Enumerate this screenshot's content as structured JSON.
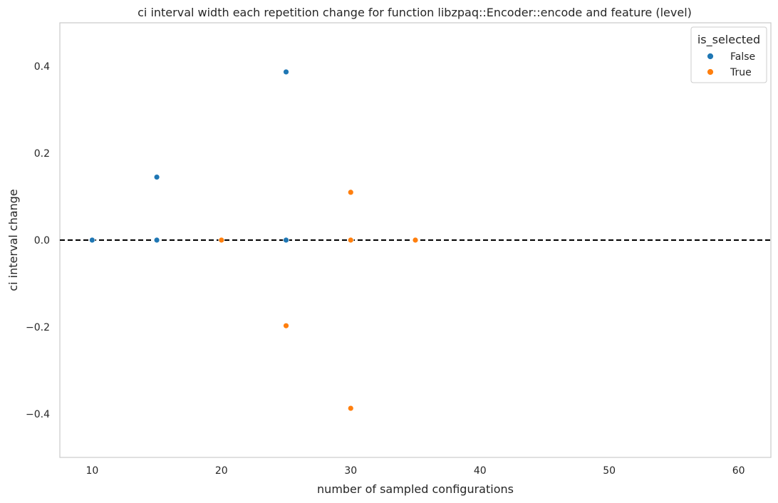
{
  "chart_data": {
    "type": "scatter",
    "title": "ci interval width each repetition change for function libzpaq::Encoder::encode and feature (level)",
    "xlabel": "number of sampled configurations",
    "ylabel": "ci interval change",
    "xlim": [
      7.5,
      62.5
    ],
    "ylim": [
      -0.5,
      0.5
    ],
    "x_ticks": [
      10,
      20,
      30,
      40,
      50,
      60
    ],
    "y_ticks": [
      0.4,
      0.2,
      0.0,
      -0.2,
      -0.4
    ],
    "y_tick_labels": [
      "0.4",
      "0.2",
      "0.0",
      "−0.2",
      "−0.4"
    ],
    "grid": false,
    "reference_line": {
      "y": 0.0,
      "style": "dashed",
      "color": "#000000"
    },
    "legend": {
      "title": "is_selected",
      "placement": "top-right",
      "entries": [
        "False",
        "True"
      ]
    },
    "series": [
      {
        "name": "False",
        "color": "#1f77b4",
        "points": [
          {
            "x": 10,
            "y": 0.0
          },
          {
            "x": 15,
            "y": 0.0
          },
          {
            "x": 15,
            "y": 0.145
          },
          {
            "x": 25,
            "y": 0.0
          },
          {
            "x": 25,
            "y": 0.387
          }
        ]
      },
      {
        "name": "True",
        "color": "#ff7f0e",
        "points": [
          {
            "x": 20,
            "y": 0.0
          },
          {
            "x": 25,
            "y": -0.197
          },
          {
            "x": 30,
            "y": 0.11
          },
          {
            "x": 30,
            "y": 0.0
          },
          {
            "x": 30,
            "y": -0.387
          },
          {
            "x": 35,
            "y": 0.0
          }
        ]
      }
    ]
  }
}
